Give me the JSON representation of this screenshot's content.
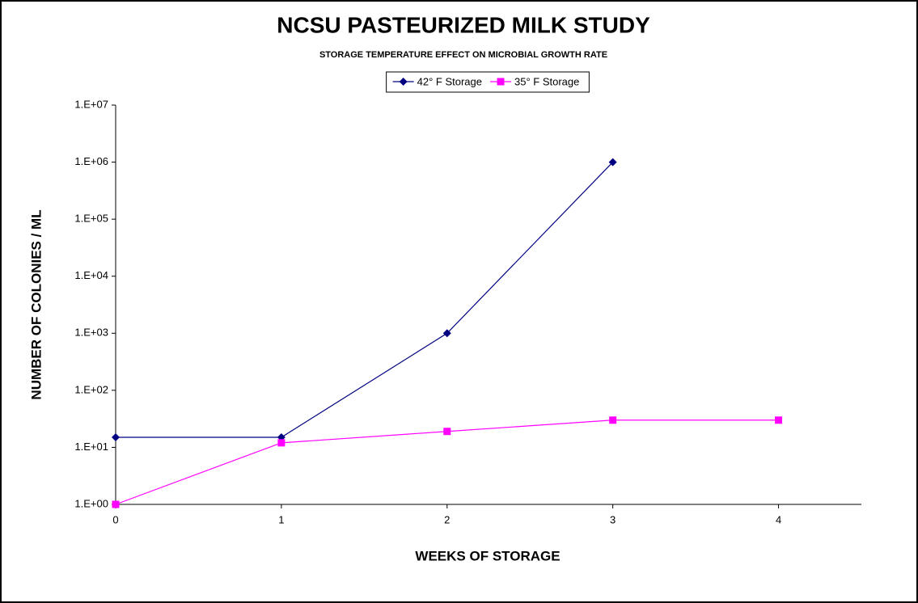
{
  "chart_data": {
    "type": "line",
    "title": "NCSU PASTEURIZED MILK STUDY",
    "subtitle": "STORAGE TEMPERATURE EFFECT ON MICROBIAL GROWTH RATE",
    "x_label": "WEEKS OF STORAGE",
    "y_label": "NUMBER OF COLONIES / ML",
    "series": [
      {
        "name": "42° F Storage",
        "color": "#000080",
        "marker": "diamond",
        "x": [
          0,
          1,
          2,
          3
        ],
        "values": [
          15,
          15,
          1000,
          1000000
        ]
      },
      {
        "name": "35° F Storage",
        "color": "#ff00ff",
        "marker": "square",
        "x": [
          0,
          1,
          2,
          3,
          4
        ],
        "values": [
          1,
          12,
          19,
          30,
          30
        ]
      }
    ],
    "xlim": [
      0,
      4.5
    ],
    "xticks": [
      0,
      1,
      2,
      3,
      4
    ],
    "ylim": [
      1,
      10000000
    ],
    "yticks": [
      {
        "value": 1,
        "label": "1.E+00"
      },
      {
        "value": 10,
        "label": "1.E+01"
      },
      {
        "value": 100,
        "label": "1.E+02"
      },
      {
        "value": 1000,
        "label": "1.E+03"
      },
      {
        "value": 10000,
        "label": "1.E+04"
      },
      {
        "value": 100000,
        "label": "1.E+05"
      },
      {
        "value": 1000000,
        "label": "1.E+06"
      },
      {
        "value": 10000000,
        "label": "1.E+07"
      }
    ],
    "log_y": true,
    "grid": false,
    "legend": "top"
  }
}
